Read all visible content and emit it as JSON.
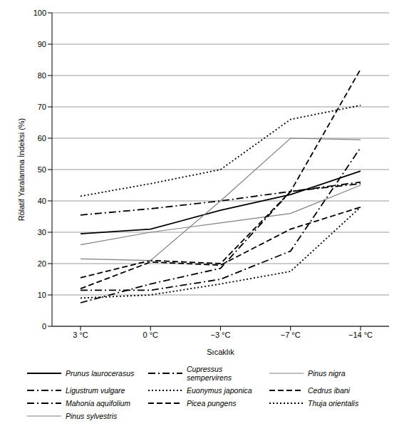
{
  "chart_data": {
    "type": "line",
    "x_label": "Sıcaklık",
    "y_label": "Rölatif Yaralanma İndeksi (%)",
    "categories": [
      "3 °C",
      "0 °C",
      "−3 °C",
      "−7 °C",
      "−14 °C"
    ],
    "ylim": [
      0,
      100
    ],
    "yticks": [
      0,
      10,
      20,
      30,
      40,
      50,
      60,
      70,
      80,
      90,
      100
    ],
    "grid": true,
    "legend": "bottom",
    "series": [
      {
        "name": "Prunus laurocerasus",
        "color": "#000000",
        "line_style": "solid",
        "values": [
          29.5,
          31,
          37,
          42,
          49.5
        ]
      },
      {
        "name": "Cupressus sempervirens",
        "color": "#000000",
        "line_style": "dashdot",
        "values": [
          35.5,
          37.5,
          40,
          43,
          45.5
        ]
      },
      {
        "name": "Pinus nigra",
        "color": "#808080",
        "line_style": "solid",
        "values": [
          26,
          30,
          33,
          36,
          45
        ]
      },
      {
        "name": "Ligustrum vulgare",
        "color": "#000000",
        "line_style": "dashdot",
        "values": [
          7.5,
          13.5,
          18.5,
          43,
          46
        ]
      },
      {
        "name": "Euonymus japonica",
        "color": "#000000",
        "line_style": "dotted",
        "values": [
          41.5,
          45.5,
          50,
          66,
          70.5
        ]
      },
      {
        "name": "Cedrus ibani",
        "color": "#000000",
        "line_style": "dashed",
        "values": [
          15.5,
          21,
          20,
          43,
          82
        ]
      },
      {
        "name": "Mahonia aquifolium",
        "color": "#000000",
        "line_style": "dashdot",
        "values": [
          11.5,
          11.5,
          15,
          24,
          57
        ]
      },
      {
        "name": "Picea pungens",
        "color": "#000000",
        "line_style": "dashed",
        "values": [
          12,
          20.5,
          19.5,
          31,
          38
        ]
      },
      {
        "name": "Thuja orientalis",
        "color": "#000000",
        "line_style": "dotted",
        "values": [
          9,
          10,
          13.5,
          17.5,
          38
        ]
      },
      {
        "name": "Pinus sylvestris",
        "color": "#808080",
        "line_style": "solid",
        "values": [
          21.5,
          21,
          40,
          60,
          59.5
        ]
      }
    ]
  }
}
